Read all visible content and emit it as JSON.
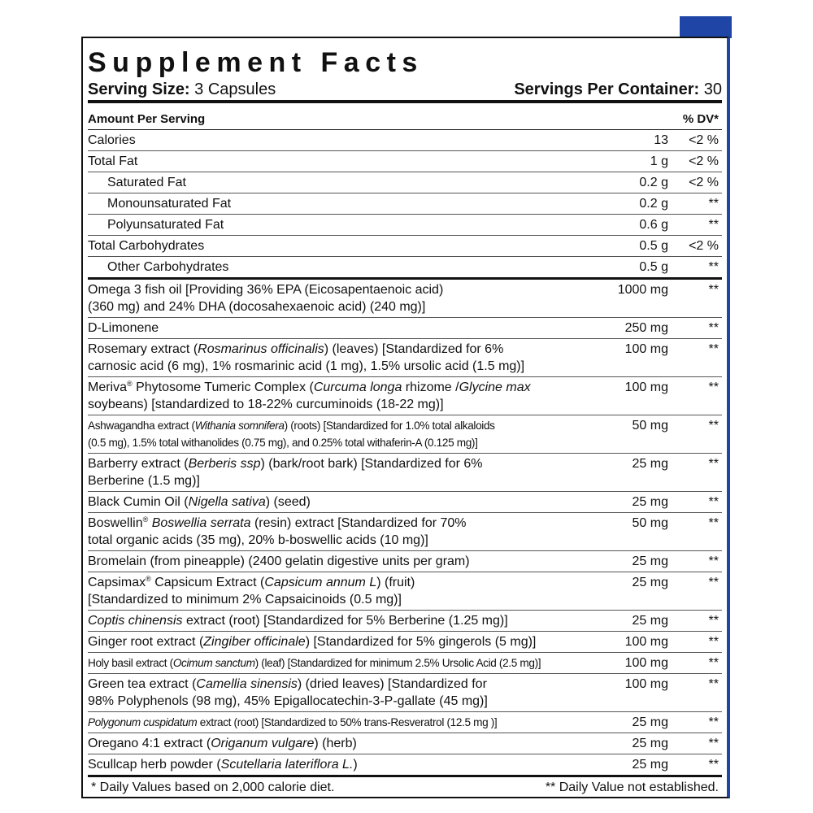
{
  "title": "Supplement Facts",
  "serving_size": {
    "label": "Serving Size:",
    "value": "3 Capsules"
  },
  "servings_per_container": {
    "label": "Servings Per Container:",
    "value": "30"
  },
  "header": {
    "amount": "Amount Per Serving",
    "dv": "% DV*"
  },
  "nutrients": [
    {
      "name": "Calories",
      "amount": "13",
      "dv": "<2 %"
    },
    {
      "name": "Total Fat",
      "amount": "1 g",
      "dv": "<2 %"
    },
    {
      "name": "Saturated Fat",
      "amount": "0.2 g",
      "dv": "<2 %",
      "indent": true
    },
    {
      "name": "Monounsaturated Fat",
      "amount": "0.2 g",
      "dv": "**",
      "indent": true
    },
    {
      "name": "Polyunsaturated Fat",
      "amount": "0.6 g",
      "dv": "**",
      "indent": true
    },
    {
      "name": "Total Carbohydrates",
      "amount": "0.5 g",
      "dv": "<2 %"
    },
    {
      "name": "Other Carbohydrates",
      "amount": "0.5 g",
      "dv": "**",
      "indent": true
    }
  ],
  "ingredients": [
    {
      "lines": [
        [
          {
            "text": "Omega 3 fish oil [Providing 36% EPA (Eicosapentaenoic acid)"
          }
        ],
        [
          {
            "text": "(360 mg) and 24% DHA (docosahexaenoic acid) (240 mg)]"
          }
        ]
      ],
      "amount": "1000 mg",
      "dv": "**"
    },
    {
      "lines": [
        [
          {
            "text": "D-Limonene"
          }
        ]
      ],
      "amount": "250 mg",
      "dv": "**"
    },
    {
      "lines": [
        [
          {
            "text": "Rosemary extract ("
          },
          {
            "text": "Rosmarinus officinalis",
            "italic": true
          },
          {
            "text": ") (leaves) [Standardized for 6%"
          }
        ],
        [
          {
            "text": "carnosic acid (6 mg), 1% rosmarinic acid (1 mg), 1.5% ursolic acid (1.5 mg)]"
          }
        ]
      ],
      "amount": "100 mg",
      "dv": "**"
    },
    {
      "lines": [
        [
          {
            "text": "Meriva"
          },
          {
            "text": "®",
            "superscript": true
          },
          {
            "text": " Phytosome Tumeric Complex ("
          },
          {
            "text": "Curcuma longa",
            "italic": true
          },
          {
            "text": " rhizome /"
          },
          {
            "text": "Glycine max",
            "italic": true
          }
        ],
        [
          {
            "text": "soybeans) [standardized to 18-22% curcuminoids (18-22 mg)]"
          }
        ]
      ],
      "amount": "100 mg",
      "dv": "**"
    },
    {
      "lines": [
        [
          {
            "text": "Ashwagandha extract ("
          },
          {
            "text": "Withania somnifera",
            "italic": true
          },
          {
            "text": ") (roots) [Standardized for 1.0% total alkaloids"
          }
        ],
        [
          {
            "text": "(0.5 mg), 1.5% total withanolides (0.75 mg), and 0.25% total withaferin-A (0.125 mg)]"
          }
        ]
      ],
      "amount": "50 mg",
      "dv": "**",
      "condensed": true
    },
    {
      "lines": [
        [
          {
            "text": "Barberry extract ("
          },
          {
            "text": "Berberis ssp",
            "italic": true
          },
          {
            "text": ") (bark/root bark) [Standardized for 6%"
          }
        ],
        [
          {
            "text": "Berberine (1.5 mg)]"
          }
        ]
      ],
      "amount": "25 mg",
      "dv": "**"
    },
    {
      "lines": [
        [
          {
            "text": "Black Cumin Oil ("
          },
          {
            "text": "Nigella sativa",
            "italic": true
          },
          {
            "text": ") (seed)"
          }
        ]
      ],
      "amount": "25 mg",
      "dv": "**"
    },
    {
      "lines": [
        [
          {
            "text": "Boswellin"
          },
          {
            "text": "®",
            "superscript": true
          },
          {
            "text": " "
          },
          {
            "text": "Boswellia serrata",
            "italic": true
          },
          {
            "text": " (resin) extract [Standardized for 70%"
          }
        ],
        [
          {
            "text": "total organic acids (35 mg), 20% b-boswellic acids (10 mg)]"
          }
        ]
      ],
      "amount": "50 mg",
      "dv": "**"
    },
    {
      "lines": [
        [
          {
            "text": "Bromelain (from pineapple) (2400 gelatin digestive units per gram)"
          }
        ]
      ],
      "amount": "25 mg",
      "dv": "**"
    },
    {
      "lines": [
        [
          {
            "text": "Capsimax"
          },
          {
            "text": "®",
            "superscript": true
          },
          {
            "text": " Capsicum Extract ("
          },
          {
            "text": "Capsicum annum L",
            "italic": true
          },
          {
            "text": ") (fruit)"
          }
        ],
        [
          {
            "text": "[Standardized to minimum 2% Capsaicinoids (0.5 mg)]"
          }
        ]
      ],
      "amount": "25 mg",
      "dv": "**"
    },
    {
      "lines": [
        [
          {
            "text": "Coptis chinensis",
            "italic": true
          },
          {
            "text": " extract (root) [Standardized for 5% Berberine (1.25 mg)]"
          }
        ]
      ],
      "amount": "25 mg",
      "dv": "**"
    },
    {
      "lines": [
        [
          {
            "text": "Ginger root extract ("
          },
          {
            "text": "Zingiber officinale",
            "italic": true
          },
          {
            "text": ") [Standardized for 5% gingerols (5 mg)]"
          }
        ]
      ],
      "amount": "100 mg",
      "dv": "**"
    },
    {
      "lines": [
        [
          {
            "text": "Holy basil extract ("
          },
          {
            "text": "Ocimum sanctum",
            "italic": true
          },
          {
            "text": ") (leaf) [Standardized for minimum 2.5% Ursolic Acid (2.5 mg)]"
          }
        ]
      ],
      "amount": "100 mg",
      "dv": "**",
      "condensed": true
    },
    {
      "lines": [
        [
          {
            "text": "Green tea extract ("
          },
          {
            "text": "Camellia sinensis",
            "italic": true
          },
          {
            "text": ") (dried leaves) [Standardized for"
          }
        ],
        [
          {
            "text": "98% Polyphenols (98 mg), 45% Epigallocatechin-3-P-gallate (45 mg)]"
          }
        ]
      ],
      "amount": "100 mg",
      "dv": "**"
    },
    {
      "lines": [
        [
          {
            "text": "Polygonum cuspidatum",
            "italic": true
          },
          {
            "text": " extract (root) [Standardized to 50% trans-Resveratrol (12.5 mg )]"
          }
        ]
      ],
      "amount": "25 mg",
      "dv": "**",
      "condensed": true
    },
    {
      "lines": [
        [
          {
            "text": "Oregano 4:1 extract ("
          },
          {
            "text": "Origanum vulgare",
            "italic": true
          },
          {
            "text": ") (herb)"
          }
        ]
      ],
      "amount": "25 mg",
      "dv": "**"
    },
    {
      "lines": [
        [
          {
            "text": "Scullcap herb powder ("
          },
          {
            "text": "Scutellaria lateriflora L.",
            "italic": true
          },
          {
            "text": ")"
          }
        ]
      ],
      "amount": "25 mg",
      "dv": "**"
    }
  ],
  "footer": {
    "left": "* Daily Values based on 2,000 calorie diet.",
    "right": "** Daily Value not established."
  }
}
